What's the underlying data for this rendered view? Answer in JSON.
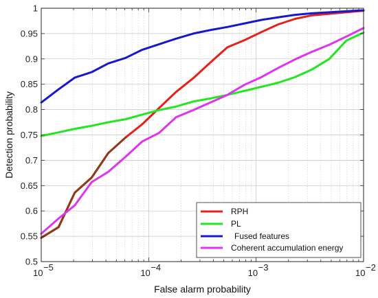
{
  "chart_data": {
    "type": "line",
    "title": "",
    "xlabel": "False alarm probability",
    "ylabel": "Detection probability",
    "xscale": "log",
    "xlim": [
      1e-05,
      0.01
    ],
    "ylim": [
      0.5,
      1.0
    ],
    "grid": true,
    "legend_position": "bottom-right",
    "x_tick_labels": [
      {
        "value": 1e-05,
        "base": "10",
        "exp": "−5"
      },
      {
        "value": 0.0001,
        "base": "10",
        "exp": "−4"
      },
      {
        "value": 0.001,
        "base": "10",
        "exp": "−3"
      },
      {
        "value": 0.01,
        "base": "10",
        "exp": "−2"
      }
    ],
    "y_ticks": [
      0.5,
      0.55,
      0.6,
      0.65,
      0.7,
      0.75,
      0.8,
      0.85,
      0.9,
      0.95,
      1
    ],
    "y_tick_labels": [
      "0.5",
      "0.55",
      "0.6",
      "0.65",
      "0.7",
      "0.75",
      "0.8",
      "0.85",
      "0.9",
      "0.95",
      "1"
    ],
    "series": [
      {
        "name": "RPH",
        "color": "#e8201a",
        "low_segment_color": "#8b3a1a",
        "points": [
          [
            1e-05,
            0.547
          ],
          [
            1.45e-05,
            0.568
          ],
          [
            2.05e-05,
            0.636
          ],
          [
            2.95e-05,
            0.666
          ],
          [
            4.2e-05,
            0.714
          ],
          [
            6.1e-05,
            0.745
          ],
          [
            8.7e-05,
            0.771
          ],
          [
            0.000125,
            0.803
          ],
          [
            0.00018,
            0.835
          ],
          [
            0.00026,
            0.862
          ],
          [
            0.000375,
            0.893
          ],
          [
            0.00054,
            0.923
          ],
          [
            0.00078,
            0.937
          ],
          [
            0.00112,
            0.953
          ],
          [
            0.0016,
            0.968
          ],
          [
            0.0023,
            0.979
          ],
          [
            0.0033,
            0.986
          ],
          [
            0.0048,
            0.989
          ],
          [
            0.0069,
            0.992
          ],
          [
            0.01,
            0.995
          ]
        ]
      },
      {
        "name": "PL",
        "color": "#22e61f",
        "points": [
          [
            1e-05,
            0.748
          ],
          [
            1.45e-05,
            0.755
          ],
          [
            2.05e-05,
            0.762
          ],
          [
            2.95e-05,
            0.768
          ],
          [
            4.2e-05,
            0.775
          ],
          [
            6.1e-05,
            0.781
          ],
          [
            8.7e-05,
            0.79
          ],
          [
            0.000125,
            0.799
          ],
          [
            0.00018,
            0.806
          ],
          [
            0.00026,
            0.816
          ],
          [
            0.000375,
            0.822
          ],
          [
            0.00054,
            0.829
          ],
          [
            0.00078,
            0.837
          ],
          [
            0.00112,
            0.845
          ],
          [
            0.0016,
            0.853
          ],
          [
            0.0023,
            0.864
          ],
          [
            0.0033,
            0.879
          ],
          [
            0.0048,
            0.9
          ],
          [
            0.0069,
            0.936
          ],
          [
            0.01,
            0.952
          ]
        ]
      },
      {
        "name": "Fused features",
        "color": "#1717cc",
        "points": [
          [
            1e-05,
            0.814
          ],
          [
            1.45e-05,
            0.84
          ],
          [
            2.05e-05,
            0.863
          ],
          [
            2.95e-05,
            0.874
          ],
          [
            4.2e-05,
            0.891
          ],
          [
            6.1e-05,
            0.902
          ],
          [
            8.7e-05,
            0.918
          ],
          [
            0.000125,
            0.929
          ],
          [
            0.00018,
            0.94
          ],
          [
            0.00026,
            0.95
          ],
          [
            0.000375,
            0.957
          ],
          [
            0.00054,
            0.963
          ],
          [
            0.00078,
            0.97
          ],
          [
            0.00112,
            0.977
          ],
          [
            0.0016,
            0.982
          ],
          [
            0.0023,
            0.987
          ],
          [
            0.0033,
            0.99
          ],
          [
            0.0048,
            0.992
          ],
          [
            0.0069,
            0.994
          ],
          [
            0.01,
            0.996
          ]
        ]
      },
      {
        "name": "Coherent accumulation energy",
        "color": "#e033f0",
        "points": [
          [
            1e-05,
            0.555
          ],
          [
            1.45e-05,
            0.585
          ],
          [
            2.05e-05,
            0.611
          ],
          [
            2.95e-05,
            0.657
          ],
          [
            4.2e-05,
            0.677
          ],
          [
            6.1e-05,
            0.707
          ],
          [
            8.7e-05,
            0.737
          ],
          [
            0.000125,
            0.754
          ],
          [
            0.00018,
            0.785
          ],
          [
            0.00026,
            0.799
          ],
          [
            0.000375,
            0.814
          ],
          [
            0.00054,
            0.829
          ],
          [
            0.00078,
            0.849
          ],
          [
            0.00112,
            0.864
          ],
          [
            0.0016,
            0.882
          ],
          [
            0.0023,
            0.899
          ],
          [
            0.0033,
            0.914
          ],
          [
            0.0048,
            0.928
          ],
          [
            0.0069,
            0.944
          ],
          [
            0.01,
            0.961
          ]
        ]
      }
    ]
  }
}
